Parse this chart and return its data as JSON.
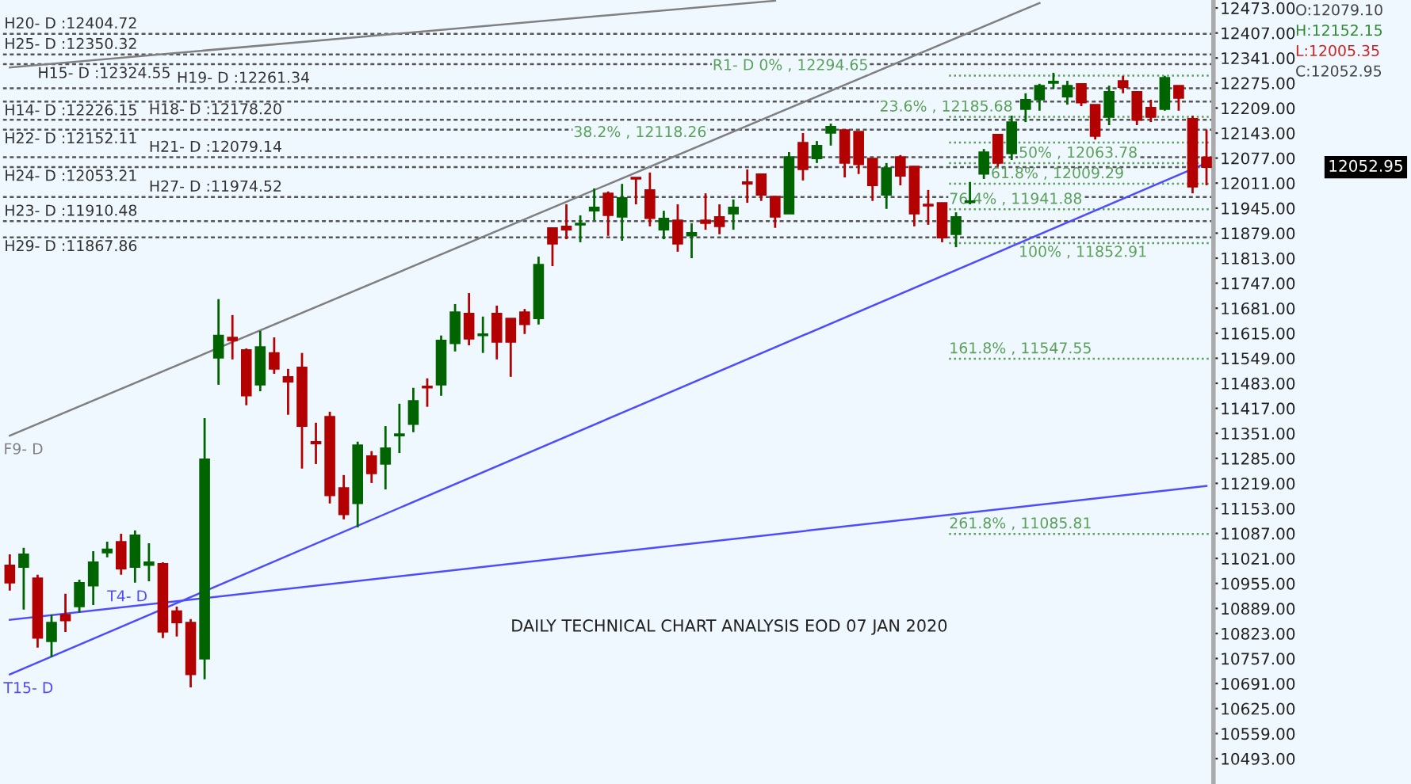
{
  "chart_data": {
    "type": "candlestick",
    "categories": [
      null,
      null,
      null,
      null,
      null,
      null,
      null,
      null,
      null,
      null,
      null,
      null,
      null,
      null,
      null,
      null,
      null,
      null,
      null,
      null,
      null,
      null,
      null,
      null,
      null,
      null,
      null,
      null,
      null,
      null,
      null,
      null,
      null,
      null,
      null,
      null,
      null,
      null,
      null,
      null,
      null,
      null,
      null,
      null,
      null,
      null,
      null,
      null,
      null,
      null,
      null,
      null,
      null,
      null,
      null,
      null,
      null,
      null,
      null,
      null,
      null,
      null,
      null,
      null,
      null,
      null,
      null,
      null,
      null,
      null,
      null,
      null,
      null,
      null,
      null,
      null,
      null,
      null,
      null,
      null,
      null,
      null,
      null,
      null,
      null,
      null,
      null
    ],
    "ohlc": [
      [
        11003,
        11032,
        10936,
        10957
      ],
      [
        10998,
        11049,
        10886,
        11032
      ],
      [
        10969,
        10978,
        10786,
        10811
      ],
      [
        10802,
        10873,
        10761,
        10852
      ],
      [
        10873,
        10928,
        10827,
        10857
      ],
      [
        10894,
        10965,
        10878,
        10957
      ],
      [
        10949,
        11040,
        10898,
        11011
      ],
      [
        11036,
        11065,
        11024,
        11045
      ],
      [
        11065,
        11086,
        10978,
        10994
      ],
      [
        10998,
        11095,
        10957,
        11082
      ],
      [
        11003,
        11061,
        10961,
        11011
      ],
      [
        11007,
        11011,
        10811,
        10827
      ],
      [
        10882,
        10894,
        10815,
        10852
      ],
      [
        10852,
        10861,
        10681,
        10715
      ],
      [
        10756,
        11391,
        10702,
        11283
      ],
      [
        11550,
        11705,
        11479,
        11609
      ],
      [
        11604,
        11663,
        11546,
        11596
      ],
      [
        11571,
        11575,
        11425,
        11450
      ],
      [
        11479,
        11621,
        11462,
        11579
      ],
      [
        11563,
        11604,
        11508,
        11521
      ],
      [
        11500,
        11521,
        11400,
        11487
      ],
      [
        11525,
        11563,
        11258,
        11370
      ],
      [
        11329,
        11379,
        11270,
        11324
      ],
      [
        11395,
        11408,
        11166,
        11187
      ],
      [
        11207,
        11241,
        11124,
        11137
      ],
      [
        11166,
        11329,
        11103,
        11320
      ],
      [
        11291,
        11304,
        11220,
        11245
      ],
      [
        11270,
        11370,
        11203,
        11312
      ],
      [
        11345,
        11429,
        11299,
        11349
      ],
      [
        11375,
        11471,
        11354,
        11437
      ],
      [
        11475,
        11496,
        11421,
        11471
      ],
      [
        11479,
        11609,
        11450,
        11596
      ],
      [
        11588,
        11692,
        11567,
        11671
      ],
      [
        11667,
        11721,
        11583,
        11600
      ],
      [
        11609,
        11659,
        11563,
        11613
      ],
      [
        11667,
        11688,
        11546,
        11592
      ],
      [
        11654,
        11654,
        11500,
        11592
      ],
      [
        11671,
        11679,
        11613,
        11638
      ],
      [
        11654,
        11817,
        11638,
        11796
      ],
      [
        11893,
        11893,
        11792,
        11851
      ],
      [
        11897,
        11955,
        11863,
        11888
      ],
      [
        11901,
        11926,
        11855,
        11905
      ],
      [
        11938,
        11997,
        11913,
        11947
      ],
      [
        11984,
        11989,
        11872,
        11926
      ],
      [
        11922,
        12009,
        11859,
        11972
      ],
      [
        12026,
        12026,
        11955,
        12022
      ],
      [
        11993,
        12039,
        11897,
        11918
      ],
      [
        11888,
        11938,
        11863,
        11918
      ],
      [
        11913,
        11955,
        11830,
        11851
      ],
      [
        11872,
        11905,
        11813,
        11880
      ],
      [
        11913,
        11984,
        11888,
        11905
      ],
      [
        11922,
        11955,
        11876,
        11897
      ],
      [
        11930,
        11968,
        11888,
        11947
      ],
      [
        12014,
        12047,
        11959,
        12009
      ],
      [
        12035,
        12035,
        11964,
        11980
      ],
      [
        11976,
        11976,
        11893,
        11922
      ],
      [
        11930,
        12093,
        11930,
        12080
      ],
      [
        12118,
        12143,
        12018,
        12047
      ],
      [
        12076,
        12122,
        12064,
        12110
      ],
      [
        12143,
        12168,
        12110,
        12160
      ],
      [
        12151,
        12151,
        12026,
        12064
      ],
      [
        12147,
        12147,
        12035,
        12060
      ],
      [
        12076,
        12076,
        11964,
        12005
      ],
      [
        11980,
        12064,
        11943,
        12051
      ],
      [
        12080,
        12085,
        12005,
        12030
      ],
      [
        12055,
        12055,
        11897,
        11930
      ],
      [
        11955,
        11993,
        11901,
        11951
      ],
      [
        11959,
        11959,
        11855,
        11867
      ],
      [
        11876,
        11934,
        11842,
        11922
      ],
      [
        11960,
        12014,
        11955,
        11964
      ],
      [
        12035,
        12101,
        12022,
        12093
      ],
      [
        12139,
        12139,
        12055,
        12064
      ],
      [
        12089,
        12189,
        12072,
        12172
      ],
      [
        12206,
        12248,
        12172,
        12231
      ],
      [
        12231,
        12273,
        12202,
        12268
      ],
      [
        12275,
        12302,
        12260,
        12279
      ],
      [
        12239,
        12281,
        12218,
        12268
      ],
      [
        12273,
        12273,
        12214,
        12223
      ],
      [
        12218,
        12218,
        12126,
        12135
      ],
      [
        12185,
        12268,
        12164,
        12252
      ],
      [
        12281,
        12294,
        12248,
        12264
      ],
      [
        12252,
        12252,
        12164,
        12177
      ],
      [
        12210,
        12231,
        12172,
        12185
      ],
      [
        12206,
        12294,
        12202,
        12289
      ],
      [
        12268,
        12268,
        12202,
        12235
      ],
      [
        12181,
        12189,
        11984,
        12001
      ],
      [
        12079.1,
        12152.15,
        12005.35,
        12052.95
      ]
    ],
    "series": [
      {
        "type": "line",
        "color": "#808080",
        "values": [
          12316,
          null,
          null,
          null,
          null,
          null,
          null,
          null,
          null,
          null,
          null,
          null,
          null,
          null,
          null,
          null,
          null,
          null,
          null,
          null,
          null,
          null,
          null,
          null,
          null,
          null,
          null,
          null,
          null,
          null,
          null,
          null,
          null,
          null,
          null,
          null,
          null,
          null,
          null,
          null,
          null,
          null,
          null,
          null,
          null,
          null,
          null,
          null,
          null,
          null,
          null,
          null,
          null,
          null,
          null,
          12492,
          null,
          null,
          null,
          null,
          null,
          null,
          null,
          null,
          null,
          null,
          null,
          null,
          null,
          null,
          null,
          null,
          null,
          null,
          null,
          null,
          null,
          null,
          null,
          null,
          null,
          null,
          null,
          null,
          null,
          null,
          null
        ]
      },
      {
        "type": "line",
        "name": "F9- D",
        "color": "#808080",
        "values": [
          11345,
          null,
          null,
          null,
          null,
          null,
          null,
          null,
          null,
          null,
          null,
          null,
          null,
          null,
          null,
          null,
          null,
          null,
          null,
          null,
          null,
          null,
          null,
          null,
          null,
          null,
          null,
          null,
          null,
          null,
          null,
          null,
          null,
          null,
          null,
          null,
          null,
          null,
          null,
          null,
          null,
          null,
          null,
          null,
          null,
          null,
          null,
          null,
          null,
          null,
          null,
          null,
          null,
          null,
          null,
          null,
          null,
          null,
          null,
          null,
          null,
          null,
          null,
          null,
          null,
          null,
          null,
          null,
          null,
          null,
          null,
          null,
          null,
          null,
          12486,
          null,
          null,
          null,
          null,
          null,
          null,
          null,
          null,
          null,
          null,
          null,
          null
        ]
      },
      {
        "type": "line",
        "name": "T4- D",
        "color": "#4d4dff",
        "values": [
          10859,
          null,
          null,
          null,
          null,
          null,
          null,
          null,
          null,
          null,
          null,
          null,
          null,
          null,
          null,
          null,
          null,
          null,
          null,
          null,
          null,
          null,
          null,
          null,
          null,
          null,
          null,
          null,
          null,
          null,
          null,
          null,
          null,
          null,
          null,
          null,
          null,
          null,
          null,
          null,
          null,
          null,
          null,
          null,
          null,
          null,
          null,
          null,
          null,
          null,
          null,
          null,
          null,
          null,
          null,
          null,
          null,
          null,
          null,
          null,
          null,
          null,
          null,
          null,
          null,
          null,
          null,
          null,
          null,
          null,
          null,
          null,
          null,
          null,
          null,
          null,
          null,
          null,
          null,
          null,
          null,
          null,
          null,
          null,
          null,
          null,
          11212
        ]
      },
      {
        "type": "line",
        "name": "T15- D",
        "color": "#4d4dff",
        "values": [
          10715,
          null,
          null,
          null,
          null,
          null,
          null,
          null,
          null,
          null,
          null,
          null,
          null,
          null,
          null,
          null,
          null,
          null,
          null,
          null,
          null,
          null,
          null,
          null,
          null,
          null,
          null,
          null,
          null,
          null,
          null,
          null,
          null,
          null,
          null,
          null,
          null,
          null,
          null,
          null,
          null,
          null,
          null,
          null,
          null,
          null,
          null,
          null,
          null,
          null,
          null,
          null,
          null,
          null,
          null,
          null,
          null,
          null,
          null,
          null,
          null,
          null,
          null,
          null,
          null,
          null,
          null,
          null,
          null,
          null,
          null,
          null,
          null,
          null,
          null,
          null,
          null,
          null,
          null,
          null,
          null,
          null,
          null,
          null,
          null,
          null,
          12064
        ]
      }
    ],
    "ref_lines": [
      {
        "axis": "y",
        "value": 12404.72,
        "label": "H20- D :12404.72",
        "color": "#555555",
        "line_style": "dashed"
      },
      {
        "axis": "y",
        "value": 12350.32,
        "label": "H25- D :12350.32",
        "color": "#555555",
        "line_style": "dashed"
      },
      {
        "axis": "y",
        "value": 12324.55,
        "label": "H15- D :12324.55",
        "color": "#555555",
        "line_style": "dashed"
      },
      {
        "axis": "y",
        "value": 12261.34,
        "label": "H19- D :12261.34",
        "color": "#555555",
        "line_style": "dashed"
      },
      {
        "axis": "y",
        "value": 12226.15,
        "label": "H14- D :12226.15",
        "color": "#555555",
        "line_style": "dashed"
      },
      {
        "axis": "y",
        "value": 12178.2,
        "label": "H18- D :12178.20",
        "color": "#555555",
        "line_style": "dashed"
      },
      {
        "axis": "y",
        "value": 12152.11,
        "label": "H22- D :12152.11",
        "color": "#555555",
        "line_style": "dashed"
      },
      {
        "axis": "y",
        "value": 12079.14,
        "label": "H21- D :12079.14",
        "color": "#555555",
        "line_style": "dashed"
      },
      {
        "axis": "y",
        "value": 12053.21,
        "label": "H24- D :12053.21",
        "color": "#555555",
        "line_style": "dashed"
      },
      {
        "axis": "y",
        "value": 11974.52,
        "label": "H27- D :11974.52",
        "color": "#555555",
        "line_style": "dashed"
      },
      {
        "axis": "y",
        "value": 11910.48,
        "label": "H23- D :11910.48",
        "color": "#555555",
        "line_style": "dashed"
      },
      {
        "axis": "y",
        "value": 11867.86,
        "label": "H29- D :11867.86",
        "color": "#555555",
        "line_style": "dashed"
      },
      {
        "axis": "y",
        "value": 12294.65,
        "label": "R1- D 0% , 12294.65",
        "color": "#5aa05a",
        "line_style": "dotted"
      },
      {
        "axis": "y",
        "value": 12185.68,
        "label": "23.6% , 12185.68",
        "color": "#5aa05a",
        "line_style": "dotted"
      },
      {
        "axis": "y",
        "value": 12118.26,
        "label": "38.2% , 12118.26",
        "color": "#5aa05a",
        "line_style": "dotted"
      },
      {
        "axis": "y",
        "value": 12063.78,
        "label": "50% , 12063.78",
        "color": "#5aa05a",
        "line_style": "dotted"
      },
      {
        "axis": "y",
        "value": 12009.29,
        "label": "61.8% , 12009.29",
        "color": "#5aa05a",
        "line_style": "dotted"
      },
      {
        "axis": "y",
        "value": 11941.88,
        "label": "76.4% , 11941.88",
        "color": "#5aa05a",
        "line_style": "dotted"
      },
      {
        "axis": "y",
        "value": 11852.91,
        "label": "100% , 11852.91",
        "color": "#5aa05a",
        "line_style": "dotted"
      },
      {
        "axis": "y",
        "value": 11547.55,
        "label": "161.8% , 11547.55",
        "color": "#5aa05a",
        "line_style": "dotted"
      },
      {
        "axis": "y",
        "value": 11085.81,
        "label": "261.8% , 11085.81",
        "color": "#5aa05a",
        "line_style": "dotted"
      }
    ],
    "annotations": [
      "DAILY TECHNICAL CHART ANALYSIS EOD 07 JAN 2020",
      "O:12079.10",
      "H:12152.15",
      "L:12005.35",
      "C:12052.95",
      "12052.95"
    ],
    "ylim": [
      10426,
      12494
    ],
    "yticks": [
      {
        "value": 12473,
        "label": "12473.00"
      },
      {
        "value": 12407,
        "label": "12407.00"
      },
      {
        "value": 12341,
        "label": "12341.00"
      },
      {
        "value": 12275,
        "label": "12275.00"
      },
      {
        "value": 12209,
        "label": "12209.00"
      },
      {
        "value": 12143,
        "label": "12143.00"
      },
      {
        "value": 12077,
        "label": "12077.00"
      },
      {
        "value": 12011,
        "label": "12011.00"
      },
      {
        "value": 11945,
        "label": "11945.00"
      },
      {
        "value": 11879,
        "label": "11879.00"
      },
      {
        "value": 11813,
        "label": "11813.00"
      },
      {
        "value": 11747,
        "label": "11747.00"
      },
      {
        "value": 11681,
        "label": "11681.00"
      },
      {
        "value": 11615,
        "label": "11615.00"
      },
      {
        "value": 11549,
        "label": "11549.00"
      },
      {
        "value": 11483,
        "label": "11483.00"
      },
      {
        "value": 11417,
        "label": "11417.00"
      },
      {
        "value": 11351,
        "label": "11351.00"
      },
      {
        "value": 11285,
        "label": "11285.00"
      },
      {
        "value": 11219,
        "label": "11219.00"
      },
      {
        "value": 11153,
        "label": "11153.00"
      },
      {
        "value": 11087,
        "label": "11087.00"
      },
      {
        "value": 11021,
        "label": "11021.00"
      },
      {
        "value": 10955,
        "label": "10955.00"
      },
      {
        "value": 10889,
        "label": "10889.00"
      },
      {
        "value": 10823,
        "label": "10823.00"
      },
      {
        "value": 10757,
        "label": "10757.00"
      },
      {
        "value": 10691,
        "label": "10691.00"
      },
      {
        "value": 10625,
        "label": "10625.00"
      },
      {
        "value": 10559,
        "label": "10559.00"
      },
      {
        "value": 10493,
        "label": "10493.00"
      }
    ],
    "tick_labels": "y",
    "grid": false,
    "legend": false
  }
}
